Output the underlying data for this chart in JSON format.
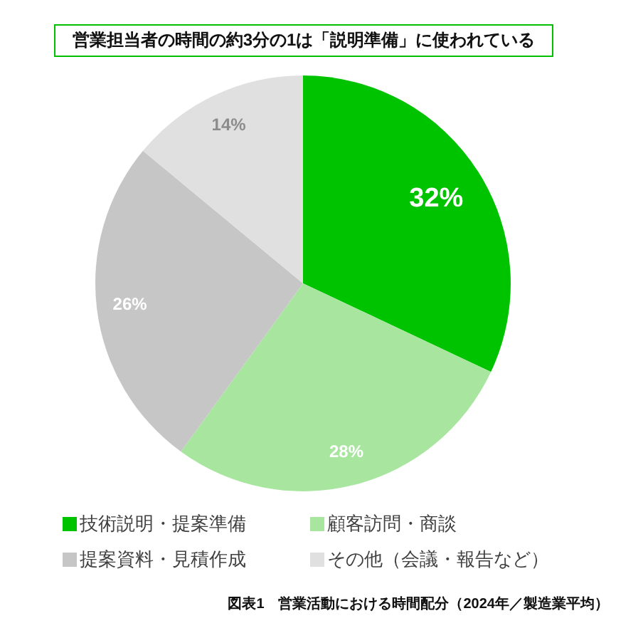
{
  "chart_data": {
    "type": "pie",
    "title": "営業担当者の時間の約3分の1は「説明準備」に使われている",
    "categories": [
      "技術説明・提案準備",
      "顧客訪問・商談",
      "提案資料・見積作成",
      "その他（会議・報告など）"
    ],
    "values": [
      32,
      28,
      26,
      14
    ],
    "colors": [
      "#00c300",
      "#a8e6a0",
      "#c6c6c6",
      "#e0e0e0"
    ],
    "value_labels": [
      "32%",
      "28%",
      "26%",
      "14%"
    ],
    "legend": "bottom",
    "annotations": [
      "図表1　営業活動における時間配分（2024年／製造業平均）"
    ]
  }
}
